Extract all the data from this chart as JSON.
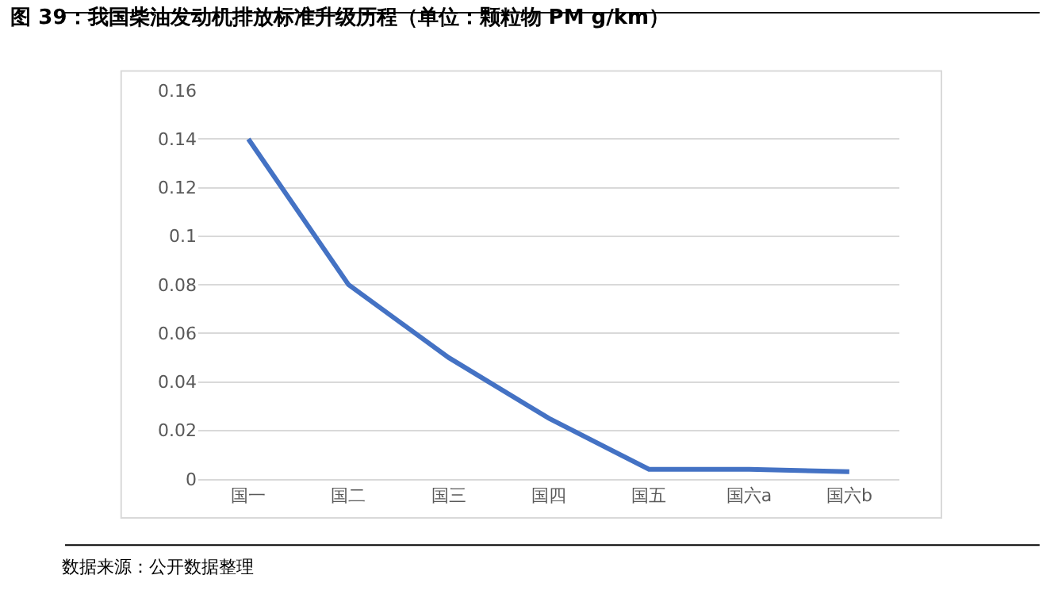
{
  "chart_data": {
    "type": "line",
    "title": "图 39：我国柴油发动机排放标准升级历程（单位：颗粒物 PM g/km）",
    "categories": [
      "国一",
      "国二",
      "国三",
      "国四",
      "国五",
      "国六a",
      "国六b"
    ],
    "series": [
      {
        "color": "#4472c4",
        "values": [
          0.14,
          0.08,
          0.05,
          0.025,
          0.004,
          0.004,
          0.003
        ]
      }
    ],
    "ylim": [
      0,
      0.16
    ],
    "yticks": [
      0,
      0.02,
      0.04,
      0.06,
      0.08,
      0.1,
      0.12,
      0.14,
      0.16
    ],
    "grid": "y",
    "marker": "none",
    "line_style": "solid",
    "annotations": [
      "数据来源：公开数据整理"
    ]
  }
}
